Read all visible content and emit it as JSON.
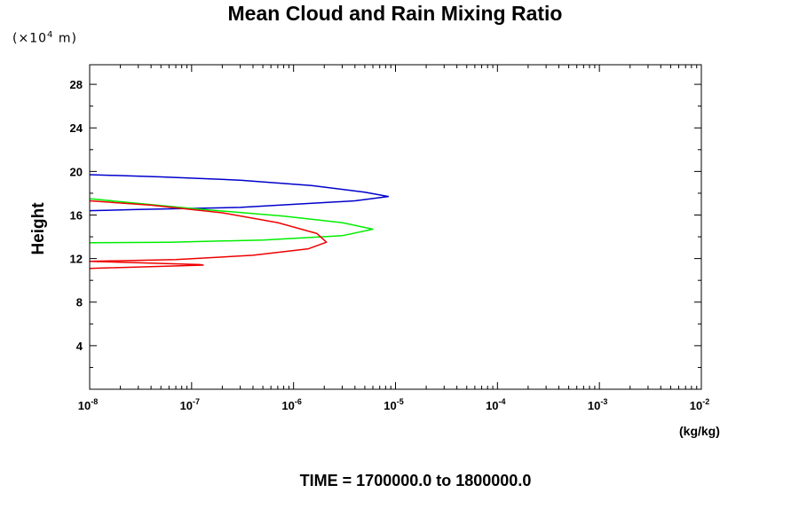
{
  "title": "Mean Cloud and Rain Mixing Ratio",
  "y_scale_note": "(×10",
  "y_scale_exp": "4",
  "y_scale_unit": " m)",
  "y_label": "Height",
  "x_unit": "(kg/kg)",
  "time_label": "TIME = 1700000.0 to 1800000.0",
  "chart_data": {
    "type": "line",
    "title": "Mean Cloud and Rain Mixing Ratio",
    "xlabel": "(kg/kg)",
    "ylabel": "Height",
    "x_scale": "log",
    "xlim": [
      1e-08,
      0.01
    ],
    "ylim": [
      0,
      29.8
    ],
    "x_ticks": [
      {
        "base": "10",
        "exp": "-8"
      },
      {
        "base": "10",
        "exp": "-7"
      },
      {
        "base": "10",
        "exp": "-6"
      },
      {
        "base": "10",
        "exp": "-5"
      },
      {
        "base": "10",
        "exp": "-4"
      },
      {
        "base": "10",
        "exp": "-3"
      },
      {
        "base": "10",
        "exp": "-2"
      }
    ],
    "y_ticks": [
      "4",
      "8",
      "12",
      "16",
      "20",
      "24",
      "28"
    ],
    "grid": false,
    "series": [
      {
        "color": "#0000cc",
        "points": [
          [
            1e-08,
            19.7
          ],
          [
            5e-08,
            19.5
          ],
          [
            3e-07,
            19.2
          ],
          [
            1.5e-06,
            18.7
          ],
          [
            5e-06,
            18.1
          ],
          [
            8.5e-06,
            17.7
          ],
          [
            4e-06,
            17.3
          ],
          [
            3e-07,
            16.7
          ],
          [
            3e-08,
            16.5
          ],
          [
            1e-08,
            16.4
          ]
        ]
      },
      {
        "color": "#00ee00",
        "points": [
          [
            1e-08,
            17.5
          ],
          [
            1e-07,
            16.6
          ],
          [
            8e-07,
            15.9
          ],
          [
            3e-06,
            15.3
          ],
          [
            6e-06,
            14.7
          ],
          [
            3e-06,
            14.1
          ],
          [
            5e-07,
            13.7
          ],
          [
            6e-08,
            13.5
          ],
          [
            1e-08,
            13.45
          ]
        ]
      },
      {
        "color": "#ee0000",
        "points": [
          [
            1e-08,
            17.3
          ],
          [
            4e-08,
            16.9
          ],
          [
            2e-07,
            16.2
          ],
          [
            7e-07,
            15.3
          ],
          [
            1.7e-06,
            14.3
          ],
          [
            2.1e-06,
            13.5
          ],
          [
            1.4e-06,
            12.9
          ],
          [
            4e-07,
            12.3
          ],
          [
            7e-08,
            11.9
          ],
          [
            1e-08,
            11.75
          ],
          [
            1.2e-07,
            11.45
          ],
          [
            1.3e-07,
            11.4
          ],
          [
            1e-08,
            11.1
          ]
        ]
      }
    ]
  }
}
